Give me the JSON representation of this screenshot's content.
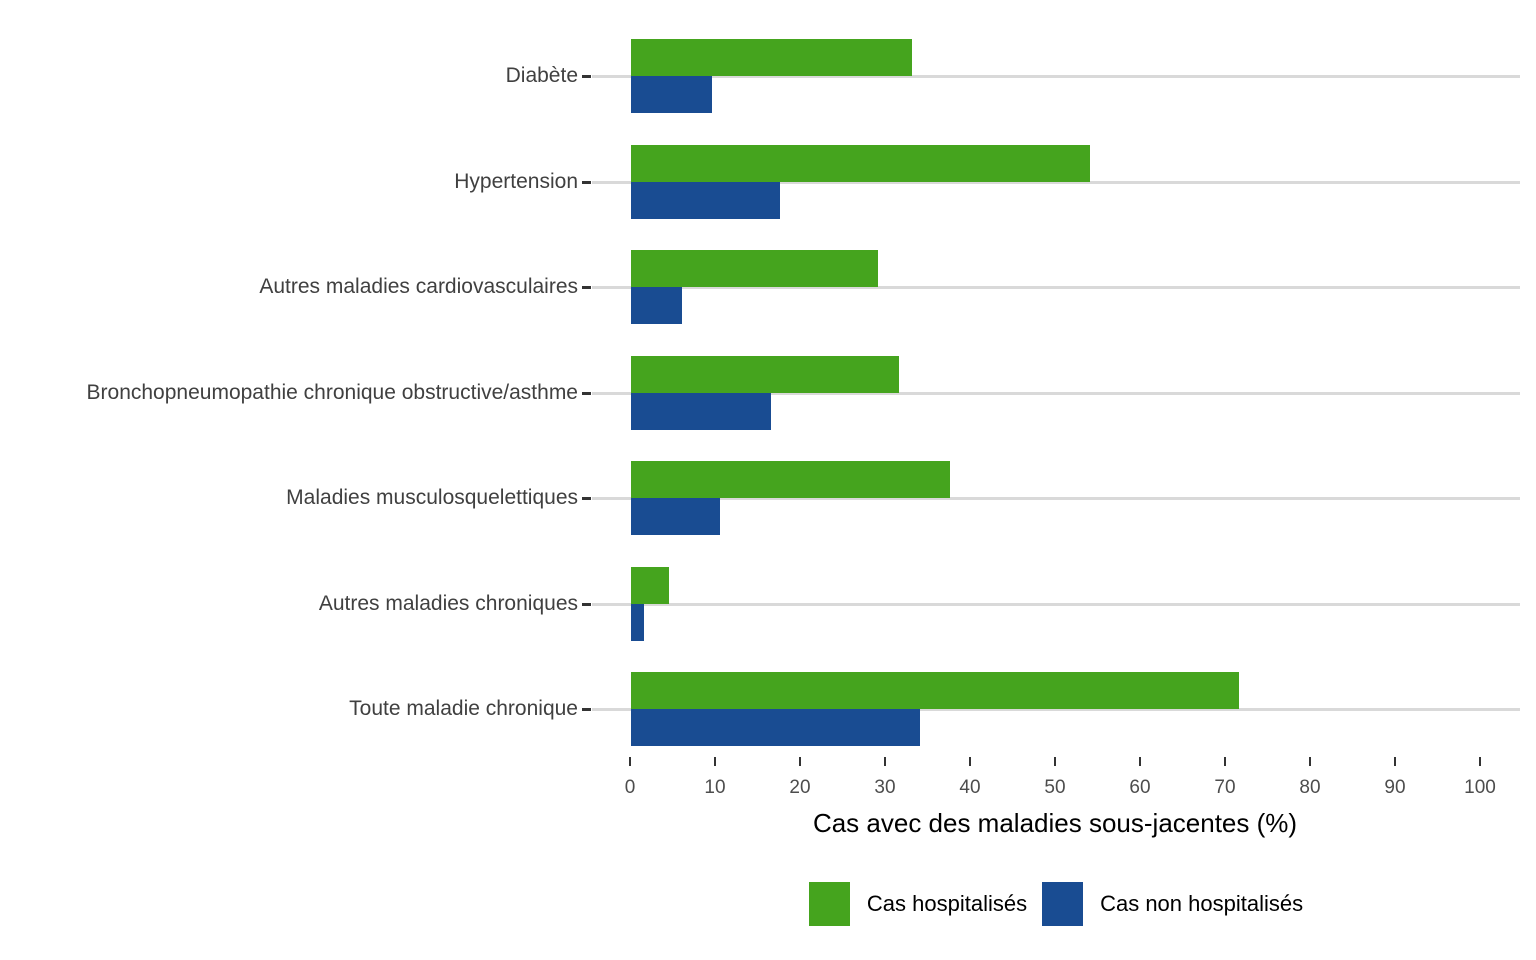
{
  "chart_data": {
    "type": "bar",
    "orientation": "horizontal",
    "title": "",
    "xlabel": "Cas avec des maladies sous-jacentes (%)",
    "ylabel": "",
    "xlim": [
      0,
      100
    ],
    "xticks": [
      0,
      10,
      20,
      30,
      40,
      50,
      60,
      70,
      80,
      90,
      100
    ],
    "grid": "horizontal category gridlines only",
    "legend_position": "bottom",
    "categories": [
      "Diabète",
      "Hypertension",
      "Autres maladies cardiovasculaires",
      "Bronchopneumopathie chronique obstructive/asthme",
      "Maladies musculosquelettiques",
      "Autres maladies chroniques",
      "Toute maladie chronique"
    ],
    "series": [
      {
        "name": "Cas hospitalisés",
        "color": "#45a41e",
        "values": [
          33,
          54,
          29,
          31.5,
          37.5,
          4.5,
          71.5
        ]
      },
      {
        "name": "Cas non hospitalisés",
        "color": "#194c92",
        "values": [
          9.5,
          17.5,
          6,
          16.5,
          10.5,
          1.5,
          34
        ]
      }
    ],
    "colors": {
      "gridline": "#d9d9d9",
      "tick": "#333333",
      "category_label_text": "#404040",
      "axis_number_text": "#4d4d4d",
      "axis_title_text": "#000000"
    }
  }
}
